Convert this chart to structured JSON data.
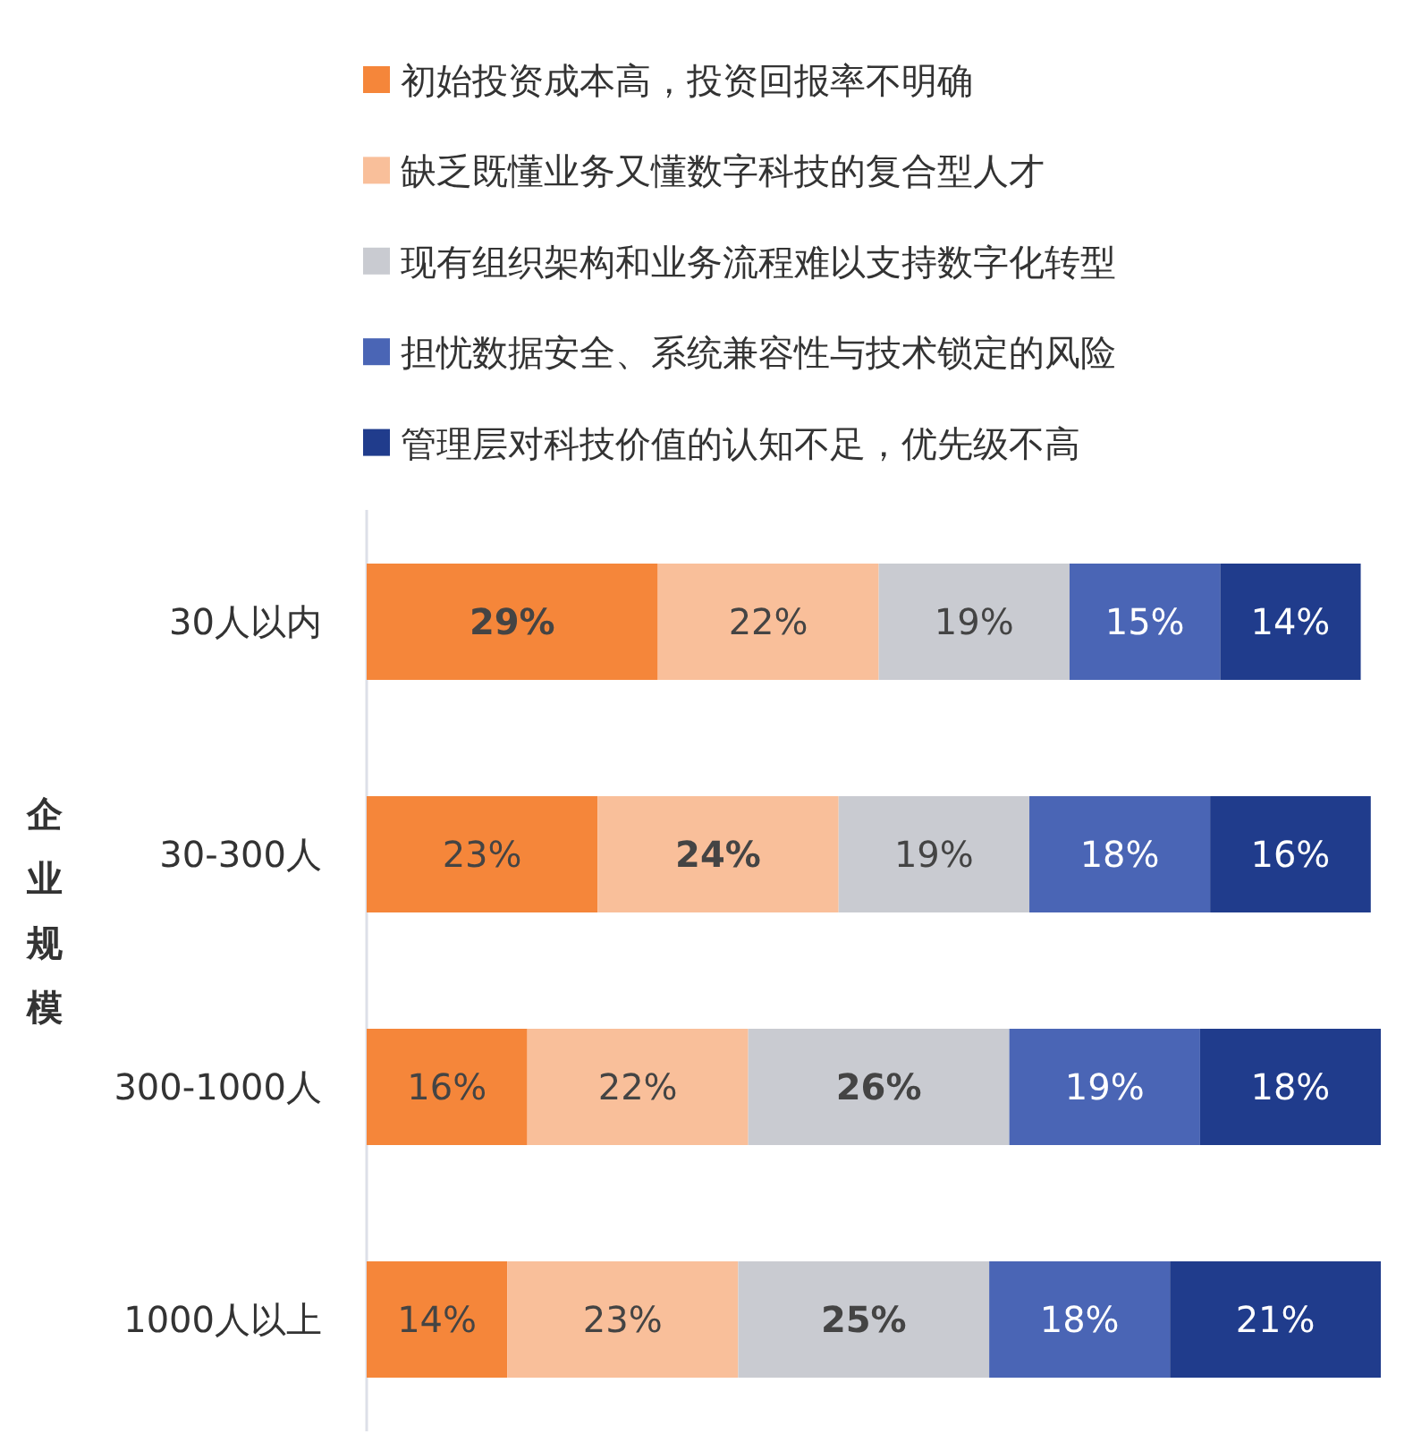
{
  "chart_data": {
    "type": "bar",
    "orientation": "horizontal",
    "stacked": true,
    "ylabel": "企业规模",
    "legend": "top",
    "categories": [
      "30人以内",
      "30-300人",
      "300-1000人",
      "1000人以上"
    ],
    "series": [
      {
        "name": "初始投资成本高，投资回报率不明确",
        "color": "#f5863a",
        "values": [
          29,
          23,
          16,
          14
        ],
        "value_labels": [
          "29%",
          "23%",
          "16%",
          "14%"
        ]
      },
      {
        "name": "缺乏既懂业务又懂数字科技的复合型人才",
        "color": "#f9bf9a",
        "values": [
          22,
          24,
          22,
          23
        ],
        "value_labels": [
          "22%",
          "24%",
          "22%",
          "23%"
        ]
      },
      {
        "name": "现有组织架构和业务流程难以支持数字化转型",
        "color": "#c9cbd1",
        "values": [
          19,
          19,
          26,
          25
        ],
        "value_labels": [
          "19%",
          "19%",
          "26%",
          "25%"
        ]
      },
      {
        "name": "担忧数据安全、系统兼容性与技术锁定的风险",
        "color": "#4a65b5",
        "values": [
          15,
          18,
          19,
          18
        ],
        "value_labels": [
          "15%",
          "18%",
          "19%",
          "18%"
        ]
      },
      {
        "name": "管理层对科技价值的认知不足，优先级不高",
        "color": "#203c8c",
        "values": [
          14,
          16,
          18,
          21
        ],
        "value_labels": [
          "14%",
          "16%",
          "18%",
          "21%"
        ]
      }
    ]
  }
}
